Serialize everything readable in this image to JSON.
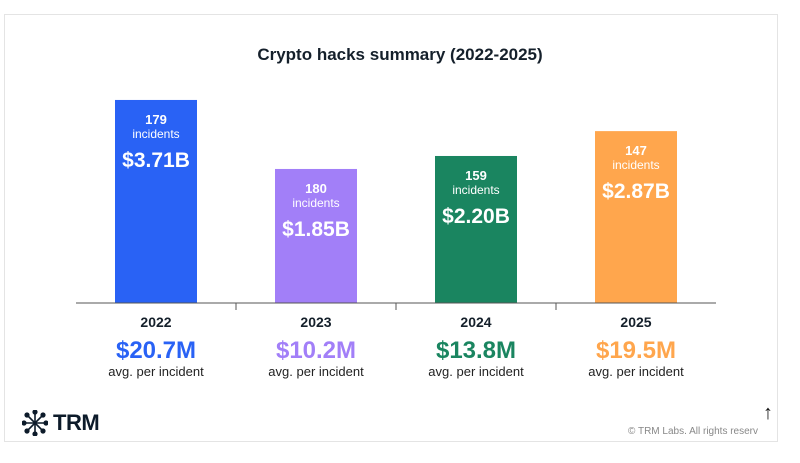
{
  "chart_data": {
    "type": "bar",
    "title": "Crypto hacks summary (2022-2025)",
    "categories": [
      "2022",
      "2023",
      "2024",
      "2025"
    ],
    "series": [
      {
        "values": [
          3.71,
          1.85,
          2.2,
          2.87
        ]
      }
    ],
    "unit": "USD billions",
    "bars": [
      {
        "year": "2022",
        "value": 3.71,
        "amount_label": "$3.71B",
        "incidents": "179",
        "incidents_label": "incidents",
        "avg": "$20.7M",
        "avg_label": "avg. per incident",
        "color": "#2962f5"
      },
      {
        "year": "2023",
        "value": 1.85,
        "amount_label": "$1.85B",
        "incidents": "180",
        "incidents_label": "incidents",
        "avg": "$10.2M",
        "avg_label": "avg. per incident",
        "color": "#a27ff8"
      },
      {
        "year": "2024",
        "value": 2.2,
        "amount_label": "$2.20B",
        "incidents": "159",
        "incidents_label": "incidents",
        "avg": "$13.8M",
        "avg_label": "avg. per incident",
        "color": "#1a8560"
      },
      {
        "year": "2025",
        "value": 2.87,
        "amount_label": "$2.87B",
        "incidents": "147",
        "incidents_label": "incidents",
        "avg": "$19.5M",
        "avg_label": "avg. per incident",
        "color": "#ffa64d"
      }
    ],
    "grid": false,
    "legend": "none"
  },
  "footer": {
    "logo": "TRM",
    "copyright": "© TRM Labs. All rights reserved",
    "scroll_top_icon": "arrow-up-icon"
  }
}
